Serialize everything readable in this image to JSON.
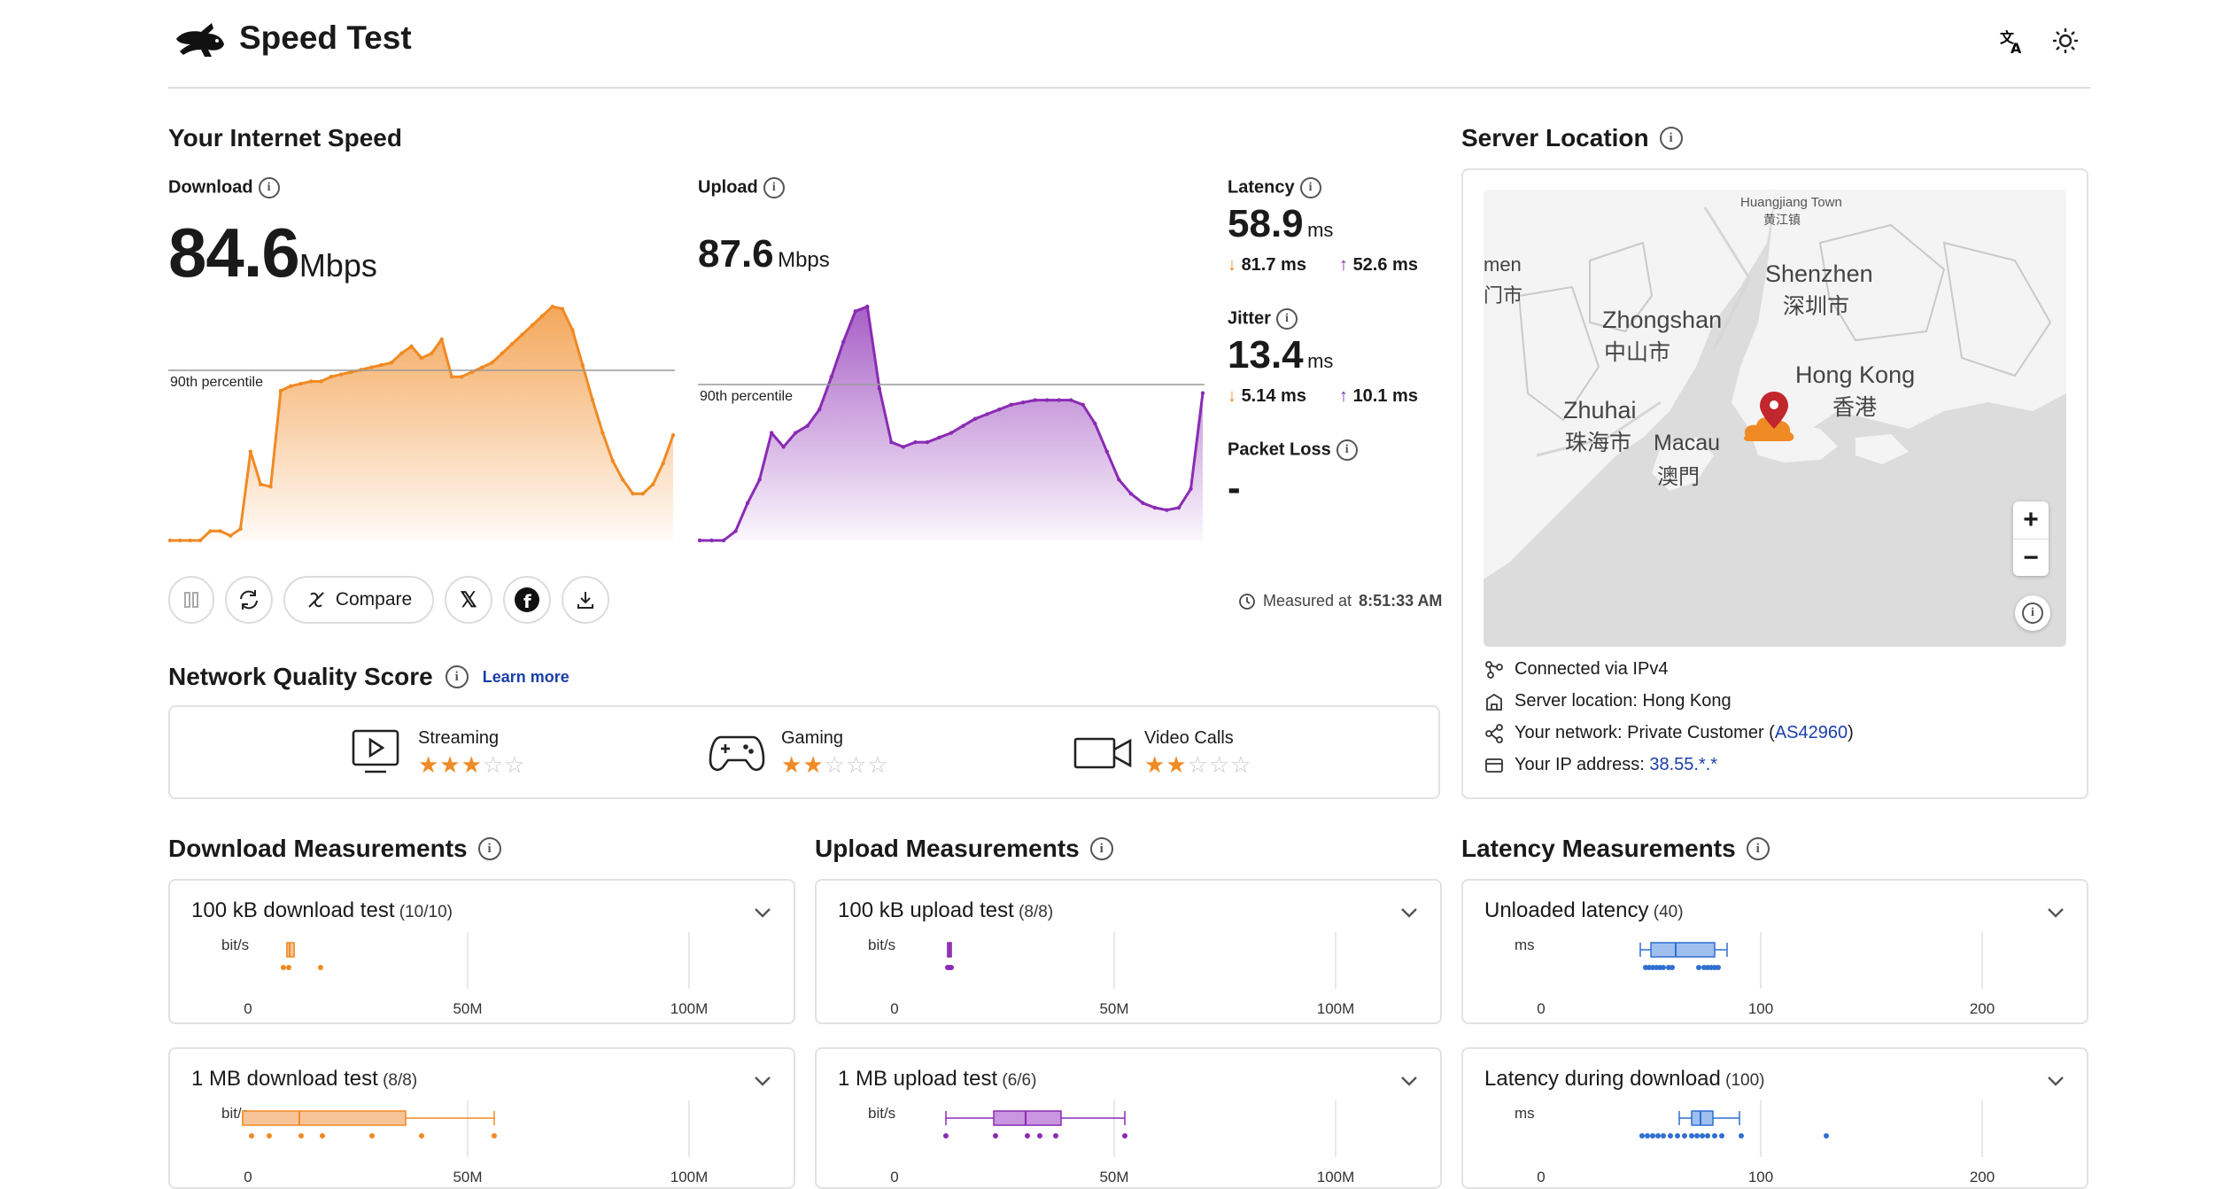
{
  "header": {
    "title": "Speed Test",
    "icons": [
      "translate-icon",
      "brightness-icon"
    ]
  },
  "speed": {
    "heading": "Your Internet Speed",
    "download": {
      "label": "Download",
      "value": "84.6",
      "unit": "Mbps",
      "percentile_label": "90th percentile"
    },
    "upload": {
      "label": "Upload",
      "value": "87.6",
      "unit": "Mbps",
      "percentile_label": "90th percentile"
    },
    "latency": {
      "label": "Latency",
      "value": "58.9",
      "unit": "ms",
      "down": "81.7 ms",
      "up": "52.6 ms"
    },
    "jitter": {
      "label": "Jitter",
      "value": "13.4",
      "unit": "ms",
      "down": "5.14 ms",
      "up": "10.1 ms"
    },
    "packet_loss": {
      "label": "Packet Loss",
      "value": "-"
    },
    "measured": {
      "prefix": "Measured at",
      "time": "8:51:33 AM"
    },
    "actions": {
      "compare": "Compare"
    }
  },
  "quality": {
    "heading": "Network Quality Score",
    "learn_more": "Learn more",
    "items": [
      {
        "label": "Streaming",
        "stars": 3,
        "max": 5
      },
      {
        "label": "Gaming",
        "stars": 2,
        "max": 5
      },
      {
        "label": "Video Calls",
        "stars": 2,
        "max": 5
      }
    ]
  },
  "server": {
    "heading": "Server Location",
    "map_labels": {
      "huangjiang": "Huangjiang Town",
      "huangjiang_cn": "黄江镇",
      "shenzhen": "Shenzhen",
      "shenzhen_cn": "深圳市",
      "zhongshan": "Zhongshan",
      "zhongshan_cn": "中山市",
      "hongkong": "Hong Kong",
      "hongkong_cn": "香港",
      "zhuhai": "Zhuhai",
      "zhuhai_cn": "珠海市",
      "macau": "Macau",
      "macau_cn": "澳門",
      "edge": "men",
      "edge_cn": "门市"
    },
    "connected": "Connected via IPv4",
    "location_label": "Server location:",
    "location_value": "Hong Kong",
    "network_label": "Your network:",
    "network_value": "Private Customer",
    "asn": "AS42960",
    "ip_label": "Your IP address:",
    "ip_value": "38.55.*.*"
  },
  "measurements": {
    "download": {
      "heading": "Download Measurements",
      "tests": [
        {
          "title": "100 kB download test",
          "count": "(10/10)",
          "unit": "bit/s",
          "ticks": [
            "0",
            "50M",
            "100M"
          ]
        },
        {
          "title": "1 MB download test",
          "count": "(8/8)",
          "unit": "bit/s",
          "ticks": [
            "0",
            "50M",
            "100M"
          ]
        }
      ]
    },
    "upload": {
      "heading": "Upload Measurements",
      "tests": [
        {
          "title": "100 kB upload test",
          "count": "(8/8)",
          "unit": "bit/s",
          "ticks": [
            "0",
            "50M",
            "100M"
          ]
        },
        {
          "title": "1 MB upload test",
          "count": "(6/6)",
          "unit": "bit/s",
          "ticks": [
            "0",
            "50M",
            "100M"
          ]
        }
      ]
    },
    "latency": {
      "heading": "Latency Measurements",
      "tests": [
        {
          "title": "Unloaded latency",
          "count": "(40)",
          "unit": "ms",
          "ticks": [
            "0",
            "100",
            "200"
          ]
        },
        {
          "title": "Latency during download",
          "count": "(100)",
          "unit": "ms",
          "ticks": [
            "0",
            "100",
            "200"
          ]
        }
      ]
    }
  },
  "chart_data": [
    {
      "type": "area",
      "series": [
        {
          "name": "Download",
          "values": [
            0,
            0,
            0,
            0,
            4,
            4,
            2,
            5,
            38,
            24,
            23,
            64,
            66,
            67,
            68,
            68,
            70,
            71,
            72,
            73,
            74,
            75,
            76,
            80,
            83,
            78,
            80,
            86,
            70,
            70,
            72,
            74,
            76,
            80,
            84,
            88,
            92,
            96,
            100,
            99,
            90,
            75,
            60,
            46,
            34,
            26,
            20,
            20,
            24,
            33,
            45
          ]
        }
      ],
      "percentile_90": 84.6,
      "color": "#f08a24"
    },
    {
      "type": "area",
      "series": [
        {
          "name": "Upload",
          "values": [
            0,
            0,
            0,
            4,
            16,
            26,
            46,
            40,
            46,
            49,
            56,
            70,
            85,
            98,
            100,
            65,
            42,
            40,
            42,
            42,
            44,
            46,
            49,
            52,
            54,
            56,
            58,
            59,
            60,
            60,
            60,
            60,
            58,
            50,
            38,
            26,
            20,
            16,
            14,
            13,
            14,
            22,
            63
          ]
        }
      ],
      "percentile_90": 87.6,
      "color": "#8a2bb3"
    }
  ],
  "colors": {
    "download": "#f08a24",
    "upload": "#8a2bb3",
    "latency": "#2f6fd1",
    "link": "#1a3fa8"
  }
}
